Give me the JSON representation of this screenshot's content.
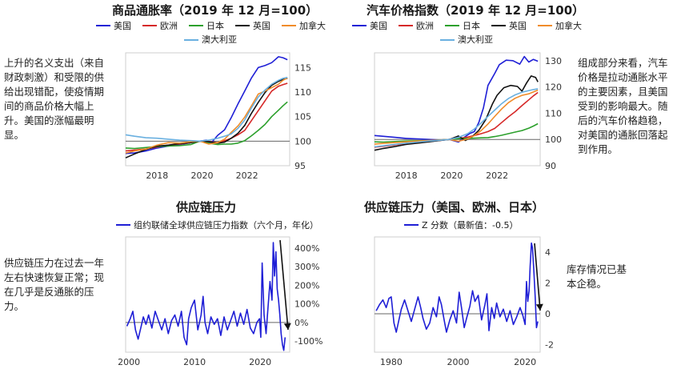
{
  "notes": {
    "top_left": "上升的名义支出（来自财政刺激）和受限的供给出现错配，使疫情期间的商品价格大幅上升。美国的涨幅最明显。",
    "top_right": "组成部分来看，汽车价格是拉动通胀水平的主要因素，且美国受到的影响最大。随后的汽车价格趋稳，对美国的通胀回落起到作用。",
    "bottom_left": "供应链压力在过去一年左右快速恢复正常；现在几乎是反通胀的压力。",
    "bottom_right": "库存情况已基本企稳。"
  },
  "colors": {
    "us": "#1f1fd6",
    "eu": "#d62828",
    "jp": "#2ca02c",
    "uk": "#111111",
    "ca": "#f08c2a",
    "au": "#6ab0e0"
  },
  "chart_data": [
    {
      "type": "line",
      "title": "商品通胀率（2019 年 12 月=100）",
      "legend_rows": [
        [
          "美国",
          "欧洲",
          "日本",
          "英国",
          "加拿大"
        ],
        [
          "澳大利亚"
        ]
      ],
      "x_ticks": [
        "2018",
        "2020",
        "2022"
      ],
      "y_ticks": [
        95,
        100,
        105,
        110,
        115
      ],
      "ylim": [
        95,
        118
      ],
      "xlim": [
        2016.6,
        2023.9
      ],
      "series": [
        {
          "name": "美国",
          "color": "#1f1fd6",
          "x": [
            2016.6,
            2017.0,
            2017.5,
            2018.0,
            2018.5,
            2019.0,
            2019.5,
            2019.9,
            2020.2,
            2020.4,
            2020.7,
            2021.0,
            2021.3,
            2021.6,
            2021.9,
            2022.2,
            2022.5,
            2022.8,
            2023.1,
            2023.4,
            2023.6,
            2023.8
          ],
          "y": [
            97.5,
            97.6,
            98.0,
            98.6,
            99.0,
            99.3,
            99.7,
            100.0,
            100.2,
            99.6,
            101.2,
            102.3,
            104.8,
            107.6,
            110.2,
            112.9,
            115.0,
            115.4,
            116.0,
            117.2,
            117.0,
            116.6
          ]
        },
        {
          "name": "欧洲",
          "color": "#d62828",
          "x": [
            2016.6,
            2017.0,
            2017.5,
            2018.0,
            2018.5,
            2019.0,
            2019.5,
            2019.9,
            2020.3,
            2020.7,
            2021.0,
            2021.3,
            2021.6,
            2021.9,
            2022.2,
            2022.5,
            2022.8,
            2023.1,
            2023.4,
            2023.6,
            2023.8
          ],
          "y": [
            98.0,
            98.2,
            98.4,
            98.8,
            99.2,
            99.4,
            99.7,
            100.0,
            99.9,
            99.7,
            100.1,
            100.6,
            101.3,
            102.2,
            104.2,
            106.2,
            108.2,
            110.2,
            111.2,
            111.5,
            111.8
          ]
        },
        {
          "name": "日本",
          "color": "#2ca02c",
          "x": [
            2016.6,
            2017.0,
            2017.5,
            2018.0,
            2018.5,
            2019.0,
            2019.5,
            2019.9,
            2020.3,
            2020.7,
            2021.0,
            2021.3,
            2021.6,
            2021.9,
            2022.2,
            2022.5,
            2022.8,
            2023.1,
            2023.4,
            2023.6,
            2023.8
          ],
          "y": [
            98.6,
            98.5,
            98.7,
            98.9,
            99.0,
            99.1,
            99.3,
            100.0,
            99.6,
            99.3,
            99.4,
            99.4,
            99.6,
            100.1,
            101.1,
            102.2,
            103.4,
            105.0,
            106.3,
            107.2,
            108.0
          ]
        },
        {
          "name": "英国",
          "color": "#111111",
          "x": [
            2016.6,
            2017.0,
            2017.5,
            2018.0,
            2018.5,
            2019.0,
            2019.5,
            2019.9,
            2020.3,
            2020.7,
            2021.0,
            2021.3,
            2021.6,
            2021.9,
            2022.2,
            2022.5,
            2022.8,
            2023.1,
            2023.4,
            2023.6,
            2023.8
          ],
          "y": [
            96.6,
            97.4,
            98.3,
            99.0,
            99.2,
            99.5,
            99.7,
            100.0,
            99.9,
            99.6,
            99.8,
            100.6,
            101.6,
            103.2,
            105.7,
            107.9,
            109.9,
            111.4,
            112.2,
            112.6,
            112.8
          ]
        },
        {
          "name": "加拿大",
          "color": "#f08c2a",
          "x": [
            2016.6,
            2017.0,
            2017.5,
            2018.0,
            2018.5,
            2019.0,
            2019.5,
            2019.9,
            2020.3,
            2020.7,
            2021.0,
            2021.3,
            2021.6,
            2021.9,
            2022.2,
            2022.5,
            2022.8,
            2023.1,
            2023.4,
            2023.6,
            2023.8
          ],
          "y": [
            97.6,
            98.0,
            98.4,
            99.2,
            99.7,
            99.6,
            99.9,
            100.0,
            99.4,
            99.7,
            100.4,
            101.8,
            103.1,
            104.9,
            107.2,
            109.6,
            110.2,
            110.9,
            111.6,
            112.4,
            112.9
          ]
        },
        {
          "name": "澳大利亚",
          "color": "#6ab0e0",
          "x": [
            2016.6,
            2017.0,
            2017.5,
            2018.0,
            2018.5,
            2019.0,
            2019.5,
            2019.9,
            2020.3,
            2020.7,
            2021.0,
            2021.3,
            2021.6,
            2021.9,
            2022.2,
            2022.5,
            2022.8,
            2023.1,
            2023.4,
            2023.6,
            2023.8
          ],
          "y": [
            101.3,
            101.0,
            100.7,
            100.6,
            100.4,
            100.2,
            100.1,
            100.0,
            100.2,
            100.6,
            101.0,
            101.5,
            102.6,
            104.3,
            106.8,
            109.0,
            110.4,
            111.6,
            112.4,
            112.8,
            113.0
          ]
        }
      ]
    },
    {
      "type": "line",
      "title": "汽车价格指数（2019 年 12 月=100）",
      "legend_rows": [
        [
          "美国",
          "欧洲",
          "日本",
          "英国",
          "加拿大"
        ],
        [
          "澳大利亚"
        ]
      ],
      "x_ticks": [
        "2018",
        "2020",
        "2022"
      ],
      "y_ticks": [
        90,
        100,
        110,
        120,
        130
      ],
      "ylim": [
        90,
        133
      ],
      "xlim": [
        2016.6,
        2023.9
      ],
      "series": [
        {
          "name": "美国",
          "color": "#1f1fd6",
          "x": [
            2016.6,
            2017.0,
            2017.5,
            2018.0,
            2018.5,
            2019.0,
            2019.5,
            2019.9,
            2020.3,
            2020.5,
            2020.8,
            2021.0,
            2021.2,
            2021.4,
            2021.6,
            2021.9,
            2022.1,
            2022.4,
            2022.7,
            2023.0,
            2023.2,
            2023.4,
            2023.6,
            2023.8
          ],
          "y": [
            101.5,
            101.2,
            100.8,
            100.4,
            100.2,
            100.0,
            99.8,
            100.0,
            99.0,
            100.5,
            102.3,
            103.0,
            106.5,
            112.0,
            120.6,
            125.2,
            128.5,
            130.2,
            130.0,
            128.7,
            131.6,
            129.5,
            130.5,
            129.8
          ]
        },
        {
          "name": "欧洲",
          "color": "#d62828",
          "x": [
            2016.6,
            2017.0,
            2017.5,
            2018.0,
            2018.5,
            2019.0,
            2019.5,
            2019.9,
            2020.3,
            2020.7,
            2021.0,
            2021.3,
            2021.6,
            2021.9,
            2022.2,
            2022.5,
            2022.8,
            2023.1,
            2023.4,
            2023.6,
            2023.8
          ],
          "y": [
            97.0,
            97.4,
            97.9,
            98.4,
            98.8,
            99.2,
            99.6,
            100.0,
            100.4,
            100.9,
            101.5,
            102.2,
            103.0,
            104.2,
            106.4,
            108.6,
            110.6,
            112.9,
            115.1,
            116.6,
            117.9
          ]
        },
        {
          "name": "日本",
          "color": "#2ca02c",
          "x": [
            2016.6,
            2017.0,
            2017.5,
            2018.0,
            2018.5,
            2019.0,
            2019.5,
            2019.9,
            2020.3,
            2020.7,
            2021.0,
            2021.3,
            2021.6,
            2021.9,
            2022.2,
            2022.5,
            2022.8,
            2023.1,
            2023.4,
            2023.6,
            2023.8
          ],
          "y": [
            99.1,
            99.0,
            99.2,
            99.4,
            99.5,
            99.6,
            99.8,
            100.0,
            100.3,
            100.4,
            100.5,
            100.6,
            100.7,
            101.1,
            101.6,
            102.2,
            102.8,
            103.4,
            104.3,
            105.1,
            106.0
          ]
        },
        {
          "name": "英国",
          "color": "#111111",
          "x": [
            2016.6,
            2017.0,
            2017.5,
            2018.0,
            2018.5,
            2019.0,
            2019.5,
            2019.9,
            2020.3,
            2020.6,
            2020.9,
            2021.2,
            2021.5,
            2021.8,
            2022.0,
            2022.3,
            2022.6,
            2022.9,
            2023.1,
            2023.3,
            2023.5,
            2023.7,
            2023.8
          ],
          "y": [
            95.9,
            96.6,
            97.3,
            98.1,
            98.6,
            99.1,
            99.6,
            100.0,
            101.3,
            99.6,
            101.0,
            103.5,
            107.5,
            113.6,
            116.8,
            119.7,
            120.6,
            120.2,
            118.4,
            121.5,
            124.2,
            123.6,
            121.9
          ]
        },
        {
          "name": "加拿大",
          "color": "#f08c2a",
          "x": [
            2016.6,
            2017.0,
            2017.5,
            2018.0,
            2018.5,
            2019.0,
            2019.5,
            2019.9,
            2020.3,
            2020.7,
            2021.0,
            2021.3,
            2021.6,
            2021.9,
            2022.2,
            2022.5,
            2022.8,
            2023.1,
            2023.4,
            2023.6,
            2023.8
          ],
          "y": [
            98.2,
            98.5,
            98.8,
            99.1,
            99.4,
            99.6,
            99.8,
            100.0,
            99.3,
            100.2,
            101.5,
            103.4,
            105.9,
            108.8,
            111.6,
            114.0,
            115.7,
            116.8,
            117.4,
            118.1,
            118.8
          ]
        },
        {
          "name": "澳大利亚",
          "color": "#6ab0e0",
          "x": [
            2016.6,
            2017.0,
            2017.5,
            2018.0,
            2018.5,
            2019.0,
            2019.5,
            2019.9,
            2020.3,
            2020.7,
            2021.0,
            2021.3,
            2021.6,
            2021.9,
            2022.2,
            2022.5,
            2022.8,
            2023.1,
            2023.4,
            2023.6,
            2023.8
          ],
          "y": [
            97.2,
            97.6,
            98.1,
            98.6,
            99.0,
            99.4,
            99.7,
            100.0,
            100.8,
            102.2,
            104.0,
            106.3,
            108.8,
            111.2,
            113.6,
            115.6,
            117.0,
            118.0,
            118.6,
            119.0,
            119.3
          ]
        }
      ]
    },
    {
      "type": "line",
      "title": "供应链压力",
      "legend_rows": [
        [
          "组约联储全球供应链压力指数（六个月，年化）"
        ]
      ],
      "x_ticks": [
        "2000",
        "2010",
        "2020"
      ],
      "y_ticks": [
        "-100%",
        "0%",
        "100%",
        "200%",
        "300%",
        "400%"
      ],
      "y_tick_values": [
        -100,
        0,
        100,
        200,
        300,
        400
      ],
      "ylim": [
        -160,
        460
      ],
      "xlim": [
        1999.5,
        2024.5
      ],
      "series": [
        {
          "name": "组约联储全球供应链压力指数（六个月，年化）",
          "color": "#1f1fd6",
          "x": [
            1999.7,
            2000.2,
            2000.6,
            2001.0,
            2001.4,
            2001.8,
            2002.2,
            2002.6,
            2003.0,
            2003.5,
            2004.0,
            2004.5,
            2005.0,
            2005.5,
            2006.0,
            2006.5,
            2007.0,
            2007.5,
            2008.0,
            2008.4,
            2008.8,
            2009.1,
            2009.5,
            2010.0,
            2010.5,
            2011.0,
            2011.3,
            2011.6,
            2012.0,
            2012.5,
            2013.0,
            2013.5,
            2014.0,
            2014.5,
            2015.0,
            2015.5,
            2016.0,
            2016.5,
            2017.0,
            2017.5,
            2018.0,
            2018.5,
            2019.0,
            2019.5,
            2019.9,
            2020.1,
            2020.3,
            2020.6,
            2020.9,
            2021.2,
            2021.5,
            2021.8,
            2022.0,
            2022.2,
            2022.4,
            2022.6,
            2022.8,
            2023.0,
            2023.2,
            2023.4,
            2023.6,
            2023.8
          ],
          "y": [
            -20,
            20,
            60,
            -40,
            -90,
            -30,
            30,
            -10,
            40,
            -30,
            60,
            10,
            -40,
            20,
            -60,
            10,
            40,
            -20,
            60,
            -80,
            -120,
            20,
            80,
            120,
            -40,
            40,
            140,
            0,
            -60,
            30,
            -10,
            20,
            -70,
            30,
            -40,
            10,
            60,
            -20,
            50,
            -10,
            70,
            -30,
            -60,
            0,
            20,
            -80,
            320,
            40,
            -60,
            80,
            220,
            120,
            430,
            250,
            380,
            180,
            120,
            40,
            -60,
            -120,
            -150,
            -80
          ]
        }
      ]
    },
    {
      "type": "line",
      "title": "供应链压力（美国、欧洲、日本）",
      "legend_rows": [
        [
          "Z 分数（最新值：-0.5）"
        ]
      ],
      "x_ticks": [
        "1980",
        "2000",
        "2020"
      ],
      "y_ticks": [
        "-2",
        "0",
        "2",
        "4"
      ],
      "y_tick_values": [
        -2,
        0,
        2,
        4
      ],
      "ylim": [
        -2.5,
        5.0
      ],
      "xlim": [
        1975.0,
        2024.5
      ],
      "series": [
        {
          "name": "Z 分数（最新值：-0.5）",
          "color": "#1f1fd6",
          "x": [
            1975.5,
            1976.5,
            1977.5,
            1978.5,
            1979.3,
            1980.0,
            1980.8,
            1981.5,
            1982.3,
            1983.0,
            1984.0,
            1985.0,
            1986.0,
            1987.0,
            1988.0,
            1988.8,
            1989.5,
            1990.5,
            1991.5,
            1992.5,
            1993.5,
            1994.3,
            1995.0,
            1995.8,
            1996.5,
            1997.5,
            1998.5,
            1999.5,
            2000.3,
            2001.0,
            2001.8,
            2002.5,
            2003.5,
            2004.3,
            2005.0,
            2006.0,
            2007.0,
            2008.0,
            2008.6,
            2009.2,
            2010.0,
            2010.8,
            2011.5,
            2012.5,
            2013.5,
            2014.5,
            2015.5,
            2016.5,
            2017.5,
            2018.5,
            2019.3,
            2020.0,
            2020.4,
            2020.8,
            2021.2,
            2021.5,
            2021.9,
            2022.2,
            2022.6,
            2023.0,
            2023.4,
            2023.8
          ],
          "y": [
            0.2,
            0.6,
            0.9,
            0.4,
            1.0,
            1.1,
            -0.6,
            -1.2,
            -0.4,
            0.3,
            0.9,
            0.2,
            -0.5,
            0.3,
            1.1,
            0.4,
            -0.3,
            -1.0,
            -0.6,
            0.4,
            -0.2,
            1.1,
            0.6,
            -0.4,
            -1.2,
            -0.4,
            0.2,
            -0.6,
            1.4,
            0.4,
            -0.9,
            -0.3,
            0.5,
            1.5,
            0.8,
            1.2,
            -0.4,
            0.6,
            1.3,
            -1.1,
            0.4,
            -0.3,
            0.7,
            -0.2,
            0.3,
            -0.5,
            0.2,
            -0.7,
            -0.2,
            0.4,
            -0.1,
            -0.7,
            2.1,
            0.8,
            1.5,
            3.1,
            4.6,
            4.3,
            2.8,
            1.2,
            -0.9,
            -0.5
          ]
        }
      ]
    }
  ]
}
